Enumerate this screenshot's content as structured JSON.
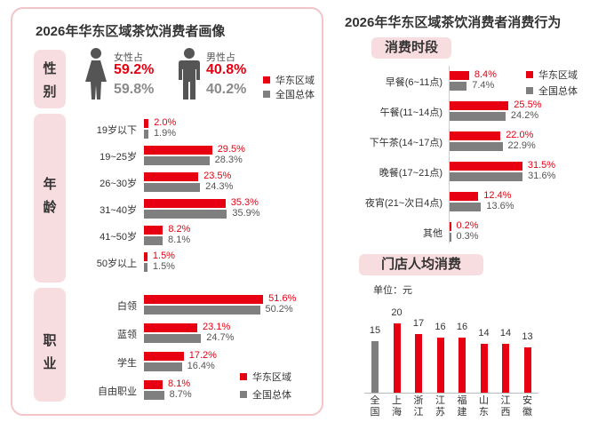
{
  "colors": {
    "region": "#e60012",
    "overall": "#7f7f7f",
    "accent_bg": "#f8dde0",
    "border": "#f3c4c8"
  },
  "left": {
    "title": "2026年华东区域茶饮消费者画像",
    "gender": {
      "section_label": [
        "性",
        "别"
      ],
      "female_label": "女性占",
      "male_label": "男性占",
      "female_region": "59.2%",
      "female_overall": "59.8%",
      "male_region": "40.8%",
      "male_overall": "40.2%",
      "female_icon": "female-person-icon",
      "male_icon": "male-person-icon"
    },
    "age_section_label": [
      "年",
      "龄"
    ],
    "job_section_label": [
      "职",
      "业"
    ]
  },
  "legend": {
    "region": "华东区域",
    "overall": "全国总体"
  },
  "right": {
    "title": "2026年华东区域茶饮消费者消费行为",
    "time_pill": "消费时段",
    "store_pill": "门店人均消费",
    "unit": "单位：元"
  },
  "chart_data": [
    {
      "type": "bar",
      "orientation": "horizontal",
      "name": "age",
      "categories": [
        "19岁以下",
        "19~25岁",
        "26~30岁",
        "31~40岁",
        "41~50岁",
        "50岁以上"
      ],
      "series": [
        {
          "name": "华东区域",
          "values": [
            2.0,
            29.5,
            23.5,
            35.3,
            8.2,
            1.5
          ]
        },
        {
          "name": "全国总体",
          "values": [
            1.9,
            28.3,
            24.3,
            35.9,
            8.1,
            1.5
          ]
        }
      ],
      "unit": "%"
    },
    {
      "type": "bar",
      "orientation": "horizontal",
      "name": "occupation",
      "categories": [
        "白领",
        "蓝领",
        "学生",
        "自由职业"
      ],
      "series": [
        {
          "name": "华东区域",
          "values": [
            51.6,
            23.1,
            17.2,
            8.1
          ]
        },
        {
          "name": "全国总体",
          "values": [
            50.2,
            24.7,
            16.4,
            8.7
          ]
        }
      ],
      "unit": "%"
    },
    {
      "type": "bar",
      "orientation": "horizontal",
      "name": "time",
      "categories": [
        "早餐(6~11点)",
        "午餐(11~14点)",
        "下午茶(14~17点)",
        "晚餐(17~21点)",
        "夜宵(21~次日4点)",
        "其他"
      ],
      "series": [
        {
          "name": "华东区域",
          "values": [
            8.4,
            25.5,
            22.0,
            31.5,
            12.4,
            0.2
          ]
        },
        {
          "name": "全国总体",
          "values": [
            7.4,
            24.2,
            22.9,
            31.6,
            13.6,
            0.3
          ]
        }
      ],
      "unit": "%"
    },
    {
      "type": "bar",
      "orientation": "vertical",
      "name": "store",
      "categories": [
        "全国",
        "上海",
        "浙江",
        "江苏",
        "福建",
        "山东",
        "江西",
        "安徽"
      ],
      "values": [
        15,
        20,
        17,
        16,
        16,
        14,
        14,
        13
      ],
      "ylim": [
        0,
        20
      ],
      "unit": "元"
    }
  ]
}
